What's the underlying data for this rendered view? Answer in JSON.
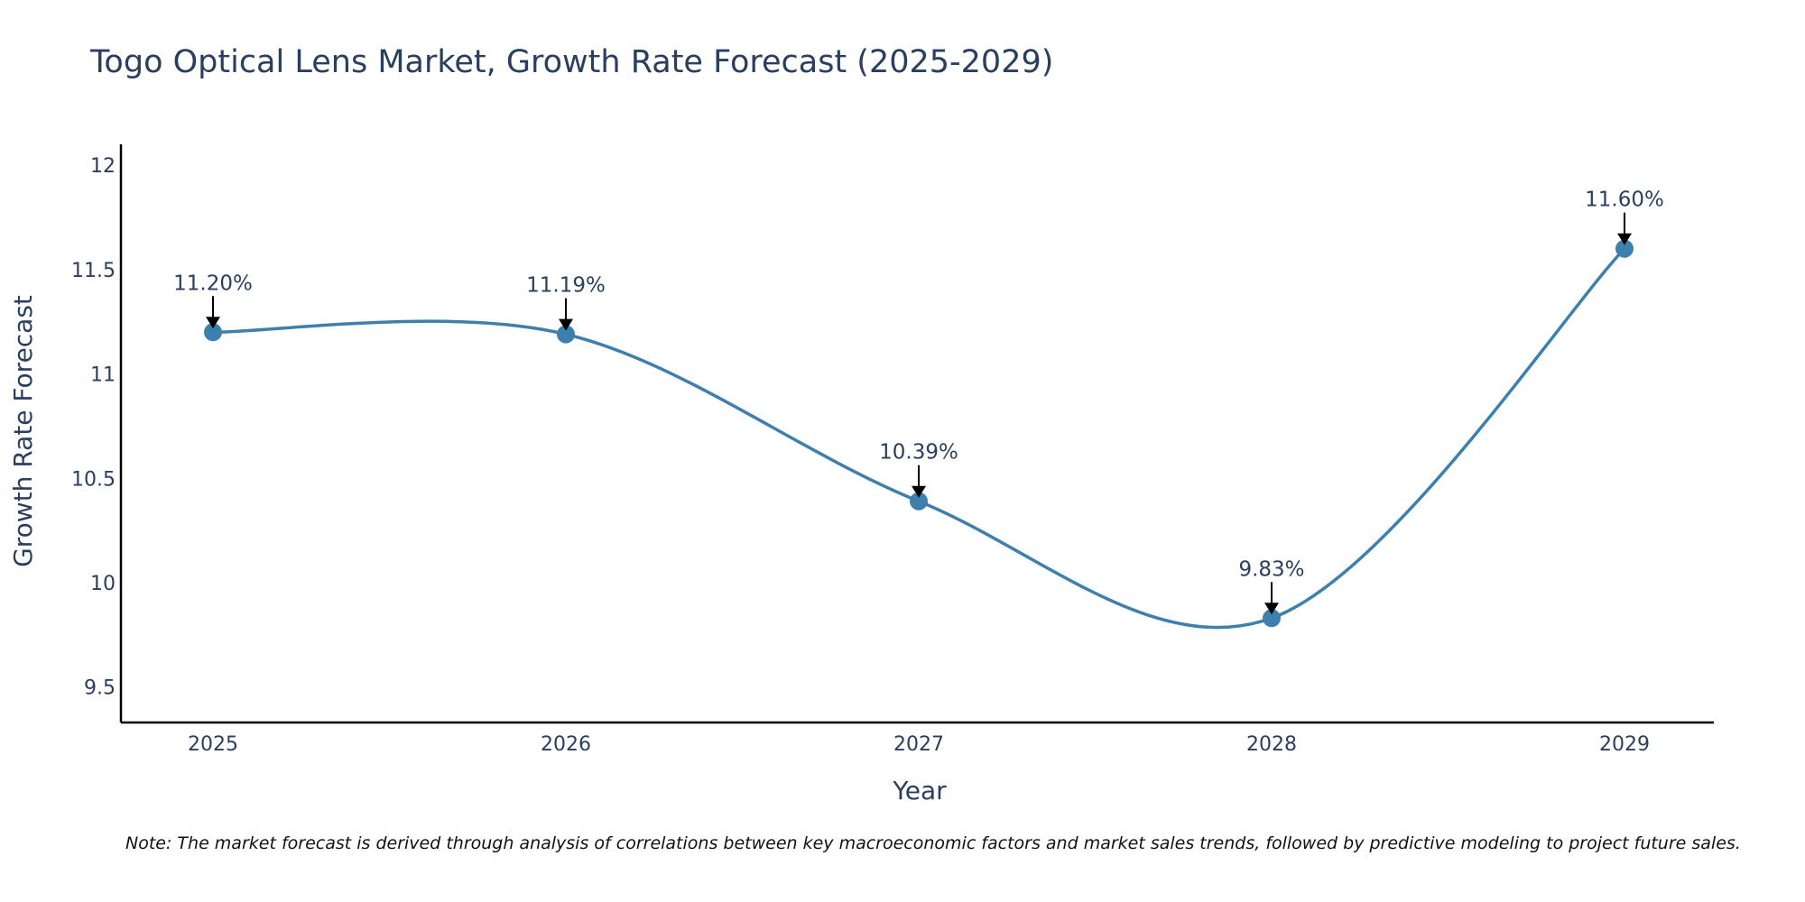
{
  "chart_data": {
    "type": "line",
    "title": "Togo Optical Lens Market, Growth Rate Forecast (2025-2029)",
    "xlabel": "Year",
    "ylabel": "Growth Rate Forecast",
    "categories": [
      "2025",
      "2026",
      "2027",
      "2028",
      "2029"
    ],
    "series": [
      {
        "name": "Growth Rate Forecast",
        "values": [
          11.2,
          11.19,
          10.39,
          9.83,
          11.6
        ],
        "labels": [
          "11.20%",
          "11.19%",
          "10.39%",
          "9.83%",
          "11.60%"
        ]
      }
    ],
    "yticks": [
      "9.5",
      "10",
      "10.5",
      "11",
      "11.5",
      "12"
    ],
    "ylim": [
      9.33,
      12.1
    ],
    "grid": false,
    "line_color": "#3d7fad",
    "arrow_color": "#000000",
    "note": "Note: The market forecast is derived through analysis of correlations between key macroeconomic factors and market sales trends, followed by predictive modeling to project future sales."
  }
}
